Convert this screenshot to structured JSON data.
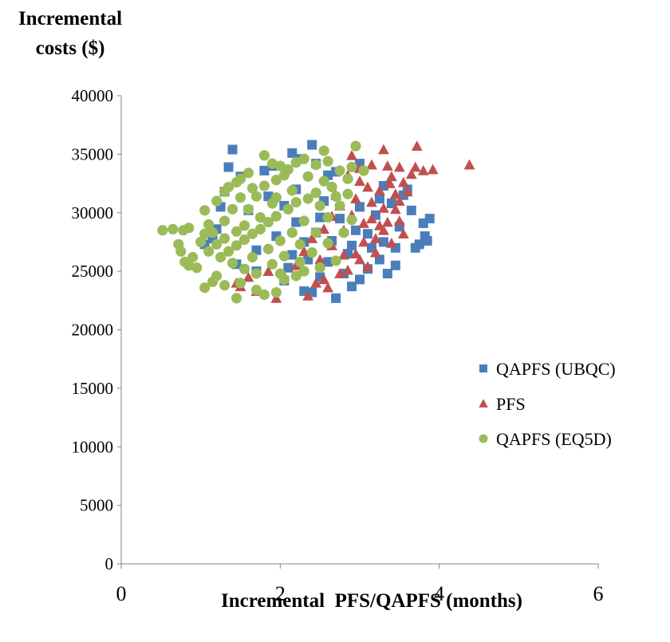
{
  "chart_data": {
    "type": "scatter",
    "ylabel_lines": [
      "Incremental",
      "costs ($)"
    ],
    "xlabel": "Incremental  PFS/QAPFS (months)",
    "xlim": [
      0,
      6
    ],
    "ylim": [
      0,
      40000
    ],
    "x_ticks": [
      "0",
      "2",
      "4",
      "6"
    ],
    "y_ticks": [
      "0",
      "5000",
      "10000",
      "15000",
      "20000",
      "25000",
      "30000",
      "35000",
      "40000"
    ],
    "grid": false,
    "legend_position": "right",
    "series": [
      {
        "name": "QAPFS (UBQC)",
        "marker": "square",
        "color": "#4A7EBB",
        "points": [
          [
            1.4,
            35400
          ],
          [
            1.35,
            33900
          ],
          [
            1.8,
            33600
          ],
          [
            2.15,
            35100
          ],
          [
            2.4,
            35800
          ],
          [
            2.7,
            33500
          ],
          [
            3.0,
            34200
          ],
          [
            3.6,
            32000
          ],
          [
            3.65,
            30200
          ],
          [
            3.8,
            29100
          ],
          [
            3.88,
            29500
          ],
          [
            3.82,
            28000
          ],
          [
            3.85,
            27600
          ],
          [
            3.75,
            27300
          ],
          [
            3.7,
            27000
          ],
          [
            3.45,
            25500
          ],
          [
            3.35,
            24800
          ],
          [
            3.0,
            24300
          ],
          [
            2.9,
            23700
          ],
          [
            2.7,
            22700
          ],
          [
            2.4,
            23200
          ],
          [
            2.3,
            23300
          ],
          [
            2.05,
            24200
          ],
          [
            2.5,
            24500
          ],
          [
            2.8,
            24800
          ],
          [
            3.1,
            25200
          ],
          [
            3.3,
            27500
          ],
          [
            3.5,
            28800
          ],
          [
            1.3,
            31800
          ],
          [
            1.25,
            30500
          ],
          [
            1.2,
            28600
          ],
          [
            1.15,
            27800
          ],
          [
            1.05,
            27300
          ],
          [
            1.5,
            33100
          ],
          [
            1.9,
            34000
          ],
          [
            2.25,
            34600
          ],
          [
            2.45,
            34200
          ],
          [
            2.6,
            33200
          ],
          [
            2.2,
            32000
          ],
          [
            2.55,
            31000
          ],
          [
            2.75,
            29500
          ],
          [
            2.95,
            28500
          ],
          [
            3.15,
            27000
          ],
          [
            3.25,
            26000
          ],
          [
            2.85,
            26500
          ],
          [
            2.6,
            25800
          ],
          [
            2.35,
            26000
          ],
          [
            2.1,
            25300
          ],
          [
            1.7,
            25000
          ],
          [
            1.45,
            25600
          ],
          [
            3.4,
            30800
          ],
          [
            3.55,
            31500
          ],
          [
            3.3,
            32300
          ],
          [
            3.2,
            29800
          ],
          [
            3.0,
            30500
          ],
          [
            2.9,
            27200
          ],
          [
            3.1,
            28200
          ],
          [
            3.45,
            27000
          ],
          [
            2.45,
            28300
          ],
          [
            2.65,
            27600
          ],
          [
            2.2,
            29200
          ],
          [
            2.05,
            30600
          ],
          [
            1.85,
            31400
          ],
          [
            1.6,
            30200
          ],
          [
            1.7,
            26800
          ],
          [
            1.95,
            28000
          ],
          [
            2.3,
            27500
          ],
          [
            2.5,
            29600
          ],
          [
            3.25,
            31200
          ],
          [
            2.15,
            26400
          ]
        ]
      },
      {
        "name": "PFS",
        "marker": "triangle",
        "color": "#C0504D",
        "points": [
          [
            4.38,
            34100
          ],
          [
            3.72,
            35700
          ],
          [
            3.3,
            35400
          ],
          [
            3.92,
            33700
          ],
          [
            3.8,
            33600
          ],
          [
            3.7,
            33900
          ],
          [
            3.65,
            33300
          ],
          [
            3.55,
            32600
          ],
          [
            3.4,
            33100
          ],
          [
            3.35,
            34000
          ],
          [
            3.15,
            34100
          ],
          [
            2.9,
            34900
          ],
          [
            3.0,
            33800
          ],
          [
            3.6,
            31800
          ],
          [
            3.5,
            31000
          ],
          [
            3.45,
            30300
          ],
          [
            3.5,
            29300
          ],
          [
            3.3,
            28500
          ],
          [
            3.4,
            27400
          ],
          [
            3.2,
            26600
          ],
          [
            3.1,
            25400
          ],
          [
            2.85,
            25100
          ],
          [
            2.75,
            24800
          ],
          [
            2.55,
            24300
          ],
          [
            2.45,
            24000
          ],
          [
            2.6,
            23600
          ],
          [
            2.35,
            22900
          ],
          [
            1.95,
            22700
          ],
          [
            1.7,
            23300
          ],
          [
            1.5,
            23700
          ],
          [
            2.05,
            24600
          ],
          [
            2.95,
            26500
          ],
          [
            3.05,
            27500
          ],
          [
            2.8,
            28500
          ],
          [
            2.9,
            29800
          ],
          [
            3.15,
            30900
          ],
          [
            3.25,
            31900
          ],
          [
            2.7,
            31500
          ],
          [
            3.0,
            32700
          ],
          [
            2.85,
            33200
          ],
          [
            3.35,
            29200
          ],
          [
            3.55,
            28200
          ],
          [
            3.2,
            27800
          ],
          [
            2.65,
            27200
          ],
          [
            2.5,
            26000
          ],
          [
            2.2,
            25500
          ],
          [
            1.85,
            25000
          ],
          [
            1.6,
            24500
          ],
          [
            1.45,
            24000
          ],
          [
            2.4,
            27800
          ],
          [
            2.65,
            29700
          ],
          [
            2.75,
            30600
          ],
          [
            3.1,
            32200
          ],
          [
            3.45,
            31600
          ],
          [
            3.25,
            28900
          ],
          [
            3.0,
            26000
          ],
          [
            2.95,
            31200
          ],
          [
            3.3,
            30400
          ],
          [
            3.15,
            29500
          ],
          [
            2.55,
            28600
          ],
          [
            2.8,
            26400
          ],
          [
            3.05,
            29100
          ],
          [
            2.3,
            26700
          ],
          [
            3.38,
            32500
          ],
          [
            3.5,
            33900
          ]
        ]
      },
      {
        "name": "QAPFS (EQ5D)",
        "marker": "circle",
        "color": "#9BBB59",
        "points": [
          [
            0.52,
            28500
          ],
          [
            0.65,
            28600
          ],
          [
            0.78,
            28500
          ],
          [
            0.85,
            28700
          ],
          [
            0.72,
            27300
          ],
          [
            0.75,
            26700
          ],
          [
            0.8,
            25800
          ],
          [
            0.85,
            25500
          ],
          [
            0.95,
            25300
          ],
          [
            0.9,
            26200
          ],
          [
            1.05,
            23600
          ],
          [
            1.15,
            24100
          ],
          [
            1.2,
            24600
          ],
          [
            1.3,
            23800
          ],
          [
            1.45,
            22700
          ],
          [
            1.5,
            24000
          ],
          [
            1.7,
            23400
          ],
          [
            1.8,
            23000
          ],
          [
            1.95,
            23200
          ],
          [
            2.05,
            24300
          ],
          [
            2.2,
            24600
          ],
          [
            2.3,
            25000
          ],
          [
            2.5,
            25300
          ],
          [
            2.7,
            25900
          ],
          [
            1.1,
            26700
          ],
          [
            1.0,
            27500
          ],
          [
            1.05,
            28200
          ],
          [
            1.1,
            29000
          ],
          [
            1.05,
            30200
          ],
          [
            1.2,
            31000
          ],
          [
            1.3,
            31800
          ],
          [
            1.35,
            32200
          ],
          [
            1.45,
            32600
          ],
          [
            1.5,
            32900
          ],
          [
            1.6,
            33400
          ],
          [
            1.8,
            34900
          ],
          [
            1.9,
            34200
          ],
          [
            2.0,
            34000
          ],
          [
            2.1,
            33700
          ],
          [
            2.2,
            34300
          ],
          [
            2.3,
            34600
          ],
          [
            2.45,
            34100
          ],
          [
            2.55,
            35300
          ],
          [
            2.6,
            34400
          ],
          [
            2.75,
            33600
          ],
          [
            2.95,
            35700
          ],
          [
            2.9,
            33900
          ],
          [
            3.05,
            33600
          ],
          [
            2.85,
            32900
          ],
          [
            2.65,
            32200
          ],
          [
            2.45,
            31700
          ],
          [
            2.35,
            31200
          ],
          [
            2.2,
            30900
          ],
          [
            2.1,
            30300
          ],
          [
            1.95,
            29700
          ],
          [
            1.85,
            29200
          ],
          [
            1.75,
            28600
          ],
          [
            1.65,
            28200
          ],
          [
            1.55,
            27700
          ],
          [
            1.45,
            27200
          ],
          [
            1.35,
            26700
          ],
          [
            1.25,
            26200
          ],
          [
            1.4,
            25700
          ],
          [
            1.55,
            25200
          ],
          [
            1.7,
            24800
          ],
          [
            1.9,
            25600
          ],
          [
            2.05,
            26300
          ],
          [
            2.25,
            27300
          ],
          [
            2.45,
            28300
          ],
          [
            2.6,
            29600
          ],
          [
            2.75,
            30600
          ],
          [
            2.85,
            31600
          ],
          [
            2.5,
            30600
          ],
          [
            2.3,
            29300
          ],
          [
            2.15,
            28300
          ],
          [
            2.0,
            27600
          ],
          [
            1.85,
            26900
          ],
          [
            1.6,
            30300
          ],
          [
            1.7,
            31400
          ],
          [
            1.8,
            32300
          ],
          [
            1.95,
            32800
          ],
          [
            2.05,
            33200
          ],
          [
            1.3,
            29300
          ],
          [
            1.2,
            27300
          ],
          [
            1.15,
            28300
          ],
          [
            1.4,
            30300
          ],
          [
            1.5,
            31300
          ],
          [
            1.65,
            32100
          ],
          [
            2.35,
            33100
          ],
          [
            2.55,
            32700
          ],
          [
            2.7,
            31400
          ],
          [
            2.15,
            31900
          ],
          [
            1.9,
            30800
          ],
          [
            1.75,
            29600
          ],
          [
            1.55,
            28900
          ],
          [
            1.45,
            28400
          ],
          [
            1.3,
            27800
          ],
          [
            2.4,
            26600
          ],
          [
            2.6,
            27400
          ],
          [
            2.8,
            28300
          ],
          [
            2.9,
            29400
          ],
          [
            2.25,
            25800
          ],
          [
            1.95,
            31300
          ],
          [
            2.0,
            24800
          ],
          [
            1.65,
            26200
          ]
        ]
      }
    ]
  }
}
